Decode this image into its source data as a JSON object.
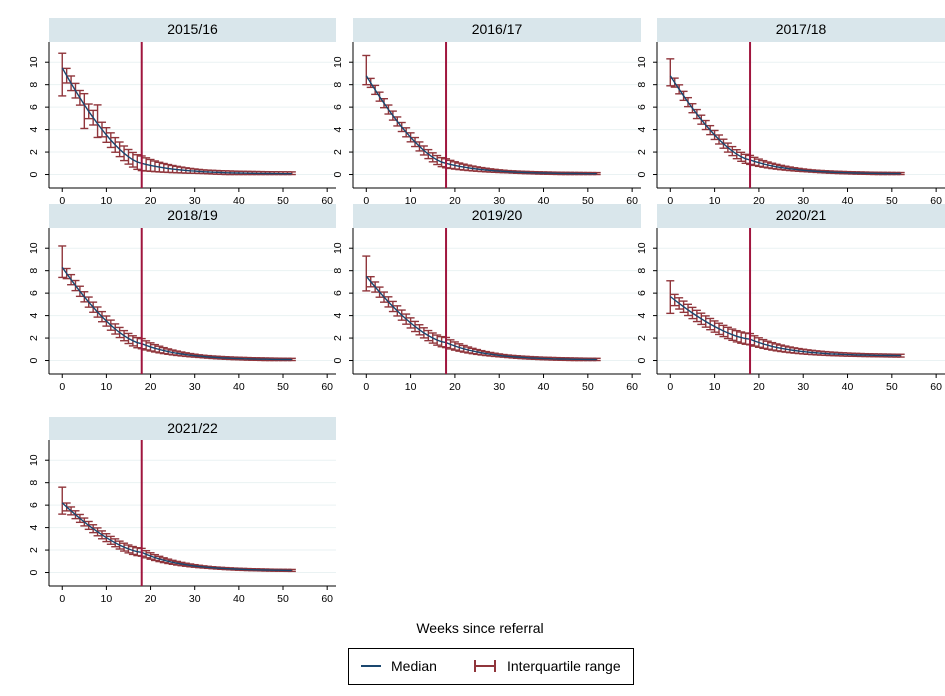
{
  "chart_data": {
    "type": "line",
    "layout": "small-multiples",
    "xlabel": "Weeks since referral",
    "ylabel": "",
    "xlim": [
      -3,
      62
    ],
    "ylim": [
      -1.2,
      11.8
    ],
    "xticks": [
      0,
      10,
      20,
      30,
      40,
      50,
      60
    ],
    "yticks": [
      0,
      2,
      4,
      6,
      8,
      10
    ],
    "reference_line_x": 18,
    "colors": {
      "median": "#1a476f",
      "iqr": "#90353b",
      "refline": "#a0153e",
      "strip": "#d9e6eb",
      "grid": "#eaf2f3"
    },
    "legend": {
      "position": "bottom",
      "entries": [
        {
          "label": "Median",
          "marker": "line",
          "color": "#1a476f"
        },
        {
          "label": "Interquartile range",
          "marker": "capped-bar",
          "color": "#90353b"
        }
      ]
    },
    "panels": [
      {
        "title": "2015/16",
        "start": 9.5,
        "w18": 1.0,
        "end": 0.05,
        "dq": 0.65,
        "outliers": [
          [
            0,
            7.0,
            10.8
          ],
          [
            5,
            4.1,
            7.2
          ],
          [
            8,
            3.3,
            6.2
          ]
        ]
      },
      {
        "title": "2016/17",
        "start": 8.8,
        "w18": 1.0,
        "end": 0.05,
        "dq": 0.4,
        "outliers": [
          [
            0,
            8.0,
            10.6
          ]
        ]
      },
      {
        "title": "2017/18",
        "start": 8.8,
        "w18": 1.3,
        "end": 0.05,
        "dq": 0.4,
        "outliers": [
          [
            0,
            7.9,
            10.3
          ]
        ]
      },
      {
        "title": "2018/19",
        "start": 8.3,
        "w18": 1.5,
        "end": 0.05,
        "dq": 0.45,
        "outliers": [
          [
            0,
            7.4,
            10.2
          ]
        ]
      },
      {
        "title": "2019/20",
        "start": 7.5,
        "w18": 1.6,
        "end": 0.05,
        "dq": 0.45,
        "outliers": [
          [
            0,
            6.2,
            9.3
          ]
        ]
      },
      {
        "title": "2020/21",
        "start": 5.7,
        "w18": 1.9,
        "end": 0.4,
        "dq": 0.5,
        "outliers": [
          [
            0,
            4.2,
            7.1
          ]
        ]
      },
      {
        "title": "2021/22",
        "start": 6.2,
        "w18": 1.8,
        "end": 0.15,
        "dq": 0.35,
        "outliers": [
          [
            0,
            5.2,
            7.6
          ]
        ]
      }
    ]
  }
}
